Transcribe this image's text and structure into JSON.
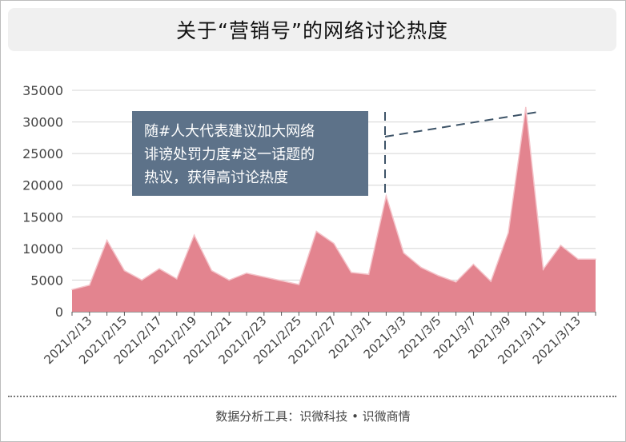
{
  "title": "关于“营销号”的网络讨论热度",
  "footer": "数据分析工具：识微科技 • 识微商情",
  "colors": {
    "area_fill": "#e3848f",
    "area_stroke": "#f4c3c9",
    "annotation_bg": "#5d7289",
    "annotation_text": "#ffffff",
    "leader_line": "#3e5468"
  },
  "chart_data": {
    "type": "area",
    "title": "关于“营销号”的网络讨论热度",
    "x_tick_labels": [
      "2021/2/13",
      "2021/2/15",
      "2021/2/17",
      "2021/2/19",
      "2021/2/21",
      "2021/2/23",
      "2021/2/25",
      "2021/2/27",
      "2021/3/1",
      "2021/3/3",
      "2021/3/5",
      "2021/3/7",
      "2021/3/9",
      "2021/3/11",
      "2021/3/13"
    ],
    "y_ticks": [
      0,
      5000,
      10000,
      15000,
      20000,
      25000,
      30000,
      35000
    ],
    "ylim": [
      0,
      35000
    ],
    "grid": true,
    "x": [
      "2021/2/12",
      "2021/2/13",
      "2021/2/14",
      "2021/2/15",
      "2021/2/16",
      "2021/2/17",
      "2021/2/18",
      "2021/2/19",
      "2021/2/20",
      "2021/2/21",
      "2021/2/22",
      "2021/2/23",
      "2021/2/24",
      "2021/2/25",
      "2021/2/26",
      "2021/2/27",
      "2021/2/28",
      "2021/3/1",
      "2021/3/2",
      "2021/3/3",
      "2021/3/4",
      "2021/3/5",
      "2021/3/6",
      "2021/3/7",
      "2021/3/8",
      "2021/3/9",
      "2021/3/10",
      "2021/3/11",
      "2021/3/12",
      "2021/3/13",
      "2021/3/14"
    ],
    "values": [
      3500,
      4200,
      11300,
      6500,
      5000,
      6800,
      5200,
      12100,
      6500,
      5000,
      6100,
      5500,
      4900,
      4300,
      12700,
      10800,
      6200,
      5900,
      18300,
      9300,
      7000,
      5700,
      4700,
      7500,
      4800,
      12500,
      32300,
      6700,
      10500,
      8300,
      8300
    ],
    "annotation": {
      "lines": [
        "随#人大代表建议加大网络",
        "诽谤处罚力度#这一话题的",
        "热议，获得高讨论热度"
      ],
      "target_x": "2021/3/11"
    }
  }
}
